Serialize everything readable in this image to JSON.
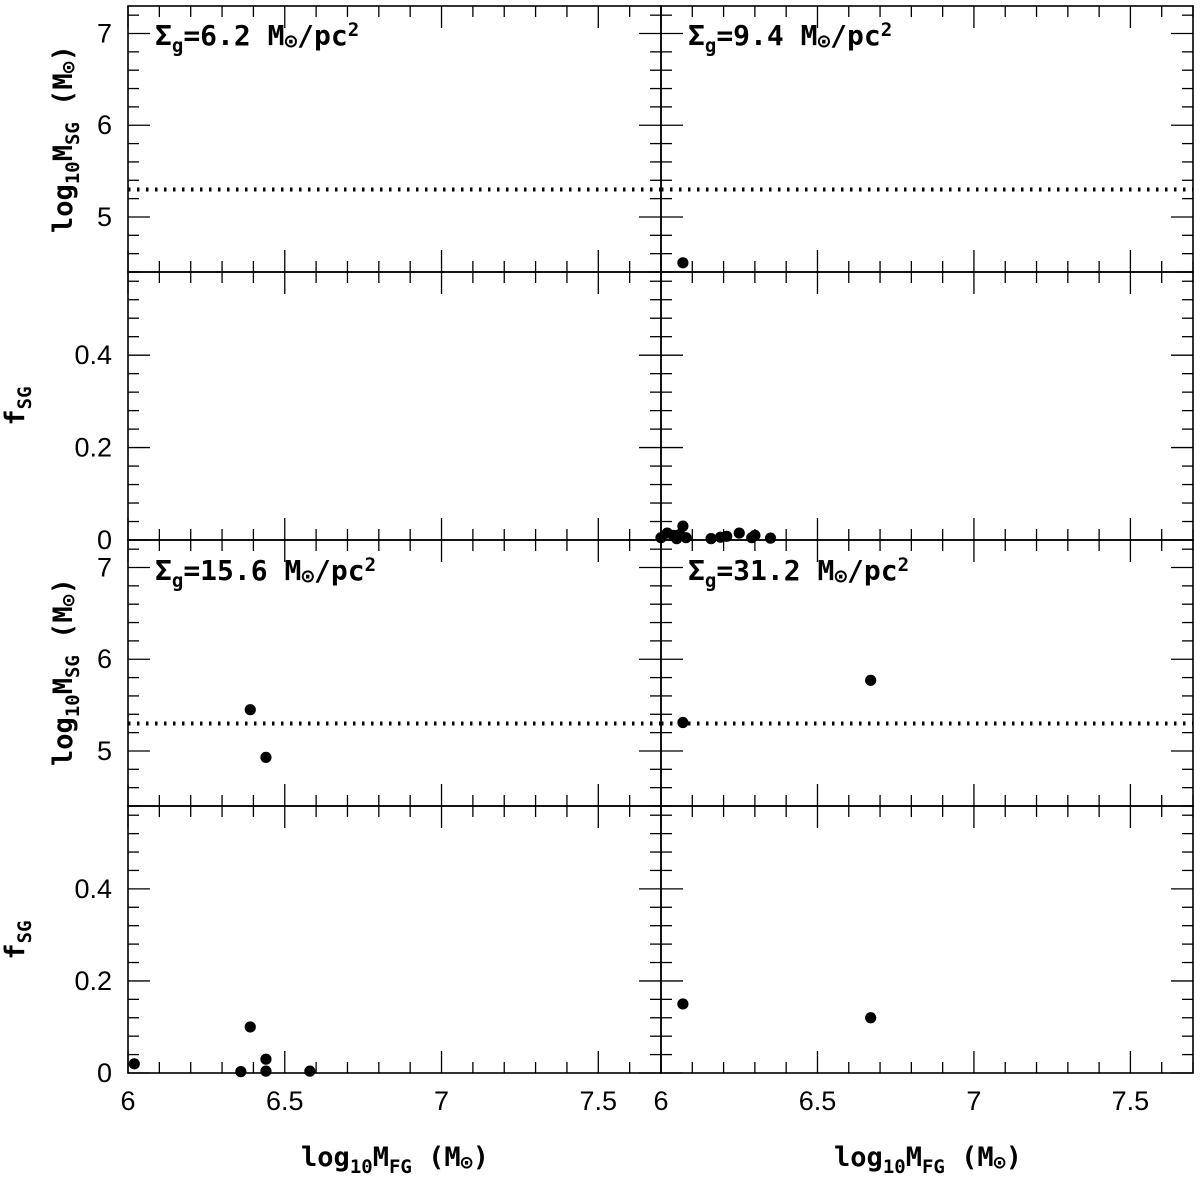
{
  "chart_data": {
    "type": "scatter",
    "layout": "2x4 grid of panels sharing axes",
    "x_axis": {
      "range": [
        6,
        7.7
      ],
      "ticks": [
        6,
        6.5,
        7,
        7.5
      ],
      "tick_labels": [
        "6",
        "6.5",
        "7",
        "7.5"
      ],
      "label": {
        "base": "log",
        "sub1": "10",
        "main": "M",
        "sub2": "FG",
        "unit": " (M",
        "unit_symbol": "⊙",
        "unit_close": ")"
      }
    },
    "y_axes": {
      "mass": {
        "range": [
          4.4,
          7.3
        ],
        "ticks": [
          5,
          6,
          7
        ],
        "tick_labels": [
          "5",
          "6",
          "7"
        ],
        "label": {
          "base": "log",
          "sub1": "10",
          "main": "M",
          "sub2": "SG",
          "unit": " (M",
          "unit_symbol": "⊙",
          "unit_close": ")"
        },
        "reference_line": 5.3
      },
      "fraction": {
        "range": [
          0,
          0.58
        ],
        "ticks": [
          0,
          0.2,
          0.4
        ],
        "tick_labels": [
          "0",
          "0.2",
          "0.4"
        ],
        "label": {
          "main": "f",
          "sub": "SG"
        }
      }
    },
    "columns": [
      {
        "top_annotation": {
          "sigma": "Σ",
          "sub": "g",
          "value": "=6.2 M",
          "unit_symbol": "⊙",
          "unit_rest": "/pc",
          "sup": "2"
        },
        "mass_points": [],
        "fraction_points": []
      },
      {
        "top_annotation": {
          "sigma": "Σ",
          "sub": "g",
          "value": "=9.4 M",
          "unit_symbol": "⊙",
          "unit_rest": "/pc",
          "sup": "2"
        },
        "mass_points": [
          [
            6.07,
            4.5
          ]
        ],
        "fraction_points": [
          [
            6.0,
            0.005
          ],
          [
            6.02,
            0.015
          ],
          [
            6.04,
            0.01
          ],
          [
            6.05,
            0.003
          ],
          [
            6.06,
            0.012
          ],
          [
            6.07,
            0.03
          ],
          [
            6.08,
            0.005
          ],
          [
            6.16,
            0.003
          ],
          [
            6.19,
            0.006
          ],
          [
            6.21,
            0.008
          ],
          [
            6.25,
            0.015
          ],
          [
            6.29,
            0.005
          ],
          [
            6.3,
            0.01
          ],
          [
            6.35,
            0.004
          ]
        ]
      }
    ],
    "rows": [
      {
        "top_annotation": {
          "sigma": "Σ",
          "sub": "g",
          "value": "=15.6 M",
          "unit_symbol": "⊙",
          "unit_rest": "/pc",
          "sup": "2"
        },
        "mass_points": [
          [
            6.39,
            5.45
          ],
          [
            6.44,
            4.93
          ]
        ],
        "fraction_points": [
          [
            6.02,
            0.02
          ],
          [
            6.36,
            0.003
          ],
          [
            6.39,
            0.1
          ],
          [
            6.44,
            0.03
          ],
          [
            6.44,
            0.004
          ],
          [
            6.58,
            0.004
          ]
        ]
      },
      {
        "top_annotation": {
          "sigma": "Σ",
          "sub": "g",
          "value": "=31.2 M",
          "unit_symbol": "⊙",
          "unit_rest": "/pc",
          "sup": "2"
        },
        "mass_points": [
          [
            6.07,
            5.31
          ],
          [
            6.67,
            5.77
          ]
        ],
        "fraction_points": [
          [
            6.07,
            0.15
          ],
          [
            6.67,
            0.12
          ]
        ]
      }
    ]
  }
}
